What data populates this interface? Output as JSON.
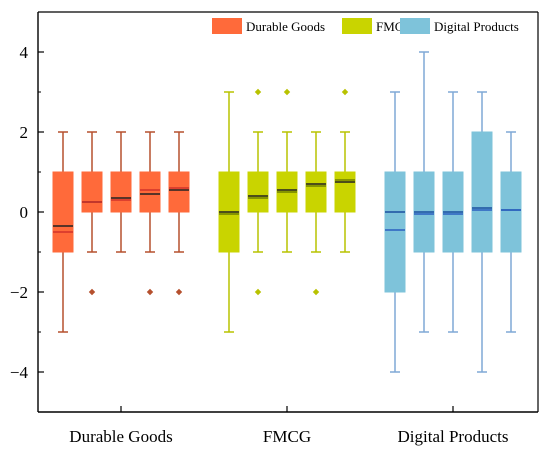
{
  "chart_data": {
    "type": "box",
    "title": "",
    "xlabel": "",
    "ylabel": "",
    "ylim": [
      -5,
      5
    ],
    "yticks": [
      -4,
      -2,
      0,
      2,
      4
    ],
    "ytick_labels": [
      "−4",
      "−2",
      "0",
      "2",
      "4"
    ],
    "grid": false,
    "legend_position": "top-right",
    "categories": [
      "Durable Goods",
      "FMCG",
      "Digital Products"
    ],
    "series": [
      {
        "name": "Durable Goods",
        "fill": "#FF6A3A",
        "whisker_color": "#B5502E",
        "median_color": "#222222",
        "mean_color": "#D2322A",
        "outlier_color": "#B5502E",
        "boxes": [
          {
            "q1": -1,
            "median": -0.35,
            "q3": 1,
            "whislo": -3,
            "whishi": 2,
            "mean": -0.5,
            "outliers": []
          },
          {
            "q1": 0,
            "median": 0.25,
            "q3": 1,
            "whislo": -1,
            "whishi": 2,
            "mean": 0.25,
            "outliers": [
              -2
            ]
          },
          {
            "q1": 0,
            "median": 0.35,
            "q3": 1,
            "whislo": -1,
            "whishi": 2,
            "mean": 0.3,
            "outliers": []
          },
          {
            "q1": 0,
            "median": 0.45,
            "q3": 1,
            "whislo": -1,
            "whishi": 2,
            "mean": 0.55,
            "outliers": [
              -2
            ]
          },
          {
            "q1": 0,
            "median": 0.55,
            "q3": 1,
            "whislo": -1,
            "whishi": 2,
            "mean": 0.6,
            "outliers": [
              -2
            ]
          }
        ]
      },
      {
        "name": "FMCG",
        "fill": "#C9D400",
        "whisker_color": "#B8C200",
        "median_color": "#222222",
        "mean_color": "#6F7E00",
        "outlier_color": "#B8C200",
        "boxes": [
          {
            "q1": -1,
            "median": 0,
            "q3": 1,
            "whislo": -3,
            "whishi": 3,
            "mean": -0.05,
            "outliers": []
          },
          {
            "q1": 0,
            "median": 0.4,
            "q3": 1,
            "whislo": -1,
            "whishi": 2,
            "mean": 0.35,
            "outliers": [
              3,
              -2
            ]
          },
          {
            "q1": 0,
            "median": 0.55,
            "q3": 1,
            "whislo": -1,
            "whishi": 2,
            "mean": 0.5,
            "outliers": [
              3
            ]
          },
          {
            "q1": 0,
            "median": 0.7,
            "q3": 1,
            "whislo": -1,
            "whishi": 2,
            "mean": 0.65,
            "outliers": [
              -2
            ]
          },
          {
            "q1": 0,
            "median": 0.75,
            "q3": 1,
            "whislo": -1,
            "whishi": 2,
            "mean": 0.8,
            "outliers": [
              3
            ]
          }
        ]
      },
      {
        "name": "Digital Products",
        "fill": "#7EC3DA",
        "whisker_color": "#7FA9D6",
        "median_color": "#1A4FA0",
        "mean_color": "#2A5FC0",
        "outlier_color": "#7FA9D6",
        "boxes": [
          {
            "q1": -2,
            "median": 0,
            "q3": 1,
            "whislo": -4,
            "whishi": 3,
            "mean": -0.45,
            "outliers": []
          },
          {
            "q1": -1,
            "median": 0,
            "q3": 1,
            "whislo": -3,
            "whishi": 4,
            "mean": -0.05,
            "outliers": []
          },
          {
            "q1": -1,
            "median": 0,
            "q3": 1,
            "whislo": -3,
            "whishi": 3,
            "mean": -0.05,
            "outliers": []
          },
          {
            "q1": -1,
            "median": 0.1,
            "q3": 2,
            "whislo": -4,
            "whishi": 3,
            "mean": 0.05,
            "outliers": []
          },
          {
            "q1": -1,
            "median": 0.05,
            "q3": 1,
            "whislo": -3,
            "whishi": 2,
            "mean": 0.05,
            "outliers": []
          }
        ]
      }
    ]
  }
}
